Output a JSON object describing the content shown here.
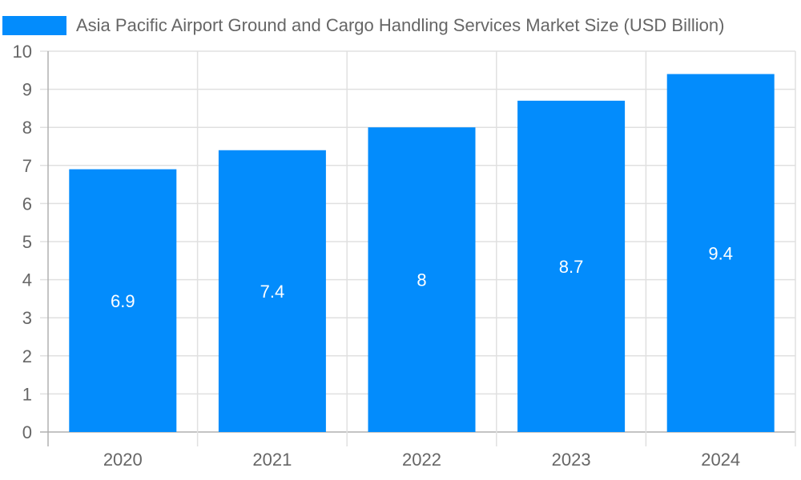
{
  "chart_data": {
    "type": "bar",
    "title": "",
    "legend": [
      {
        "label": "Asia Pacific Airport Ground and Cargo Handling Services Market Size (USD Billion)",
        "color": "#038cfc"
      }
    ],
    "legend_position": "top",
    "categories": [
      "2020",
      "2021",
      "2022",
      "2023",
      "2024"
    ],
    "series": [
      {
        "name": "Asia Pacific Airport Ground and Cargo Handling Services Market Size (USD Billion)",
        "values": [
          6.9,
          7.4,
          8,
          8.7,
          9.4
        ]
      }
    ],
    "data_labels": [
      "6.9",
      "7.4",
      "8",
      "8.7",
      "9.4"
    ],
    "xlabel": "",
    "ylabel": "",
    "ylim": [
      0,
      10
    ],
    "yticks": [
      "0",
      "1",
      "2",
      "3",
      "4",
      "5",
      "6",
      "7",
      "8",
      "9",
      "10"
    ],
    "grid": true
  },
  "legend": {
    "label": "Asia Pacific Airport Ground and Cargo Handling Services Market Size (USD Billion)"
  }
}
